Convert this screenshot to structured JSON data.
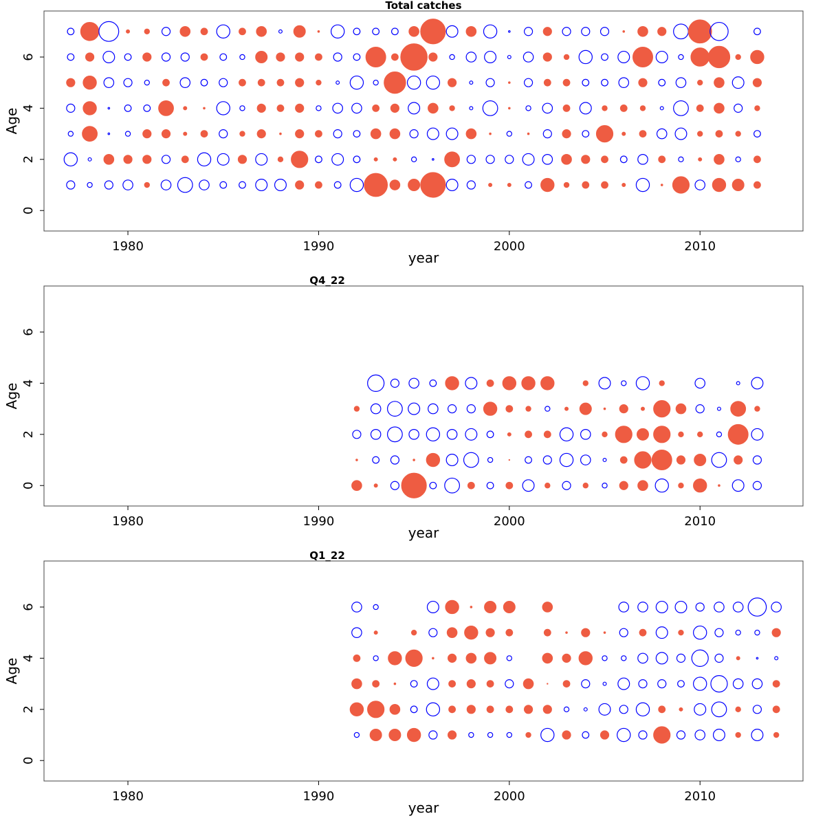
{
  "chart_data": [
    {
      "type": "scatter",
      "subtype": "bubble-residuals",
      "title": "Total catches",
      "xlabel": "year",
      "ylabel": "Age",
      "xlim": [
        1975.6,
        2015.4
      ],
      "ylim": [
        -0.8,
        7.8
      ],
      "xticks": [
        1980,
        1990,
        2000,
        2010
      ],
      "yticks": [
        0,
        2,
        4,
        6
      ],
      "grid": false,
      "legend": "none",
      "encoding": "bubble radius ∝ |residual|; filled red = positive, open blue = negative",
      "years_range": [
        1977,
        2013
      ],
      "ages": [
        1,
        2,
        3,
        4,
        5,
        6,
        7
      ],
      "residual_matrix_by_year": [
        [
          -0.5,
          -0.8,
          -0.3,
          -0.5,
          0.5,
          -0.4,
          -0.4
        ],
        [
          -0.3,
          -0.2,
          0.9,
          0.8,
          0.8,
          0.5,
          1.1
        ],
        [
          -0.5,
          0.6,
          -0.1,
          -0.1,
          -0.6,
          -0.7,
          -1.2
        ],
        [
          -0.6,
          0.5,
          -0.3,
          -0.4,
          -0.5,
          -0.4,
          0.2
        ],
        [
          0.3,
          0.5,
          0.5,
          -0.4,
          -0.3,
          0.5,
          0.3
        ],
        [
          -0.6,
          -0.5,
          0.5,
          0.9,
          0.4,
          -0.5,
          -0.5
        ],
        [
          -0.9,
          0.4,
          0.2,
          0.2,
          -0.6,
          -0.5,
          0.6
        ],
        [
          -0.6,
          -0.8,
          0.4,
          0.1,
          -0.4,
          0.4,
          0.4
        ],
        [
          -0.4,
          -0.7,
          -0.5,
          -0.8,
          -0.5,
          -0.4,
          -0.8
        ],
        [
          -0.4,
          0.5,
          0.3,
          -0.3,
          0.4,
          -0.3,
          0.4
        ],
        [
          -0.7,
          -0.7,
          0.5,
          0.5,
          0.4,
          0.7,
          0.6
        ],
        [
          -0.7,
          0.3,
          0.1,
          0.4,
          0.4,
          0.5,
          -0.2
        ],
        [
          0.5,
          1.0,
          0.5,
          0.5,
          0.5,
          0.5,
          0.7
        ],
        [
          0.4,
          -0.4,
          0.4,
          -0.3,
          0.3,
          0.4,
          0.1
        ],
        [
          -0.4,
          -0.7,
          -0.5,
          -0.6,
          -0.2,
          -0.5,
          -0.8
        ],
        [
          -0.8,
          -0.4,
          -0.4,
          -0.6,
          -0.8,
          -0.4,
          -0.4
        ],
        [
          1.4,
          0.2,
          0.6,
          0.4,
          -0.3,
          1.2,
          -0.4
        ],
        [
          0.6,
          0.2,
          0.6,
          0.5,
          1.3,
          0.4,
          -0.4
        ],
        [
          0.7,
          -0.3,
          -0.5,
          -0.7,
          -0.8,
          1.6,
          0.6
        ],
        [
          1.5,
          -0.1,
          -0.7,
          0.6,
          -0.8,
          0.5,
          1.5
        ],
        [
          -0.7,
          0.9,
          -0.7,
          0.3,
          0.5,
          -0.3,
          -0.7
        ],
        [
          -0.5,
          -0.5,
          0.6,
          -0.2,
          -0.2,
          -0.6,
          0.6
        ],
        [
          0.2,
          -0.5,
          0.1,
          -0.9,
          -0.5,
          -0.7,
          -0.8
        ],
        [
          0.2,
          -0.5,
          -0.3,
          0.1,
          0.1,
          -0.2,
          -0.1
        ],
        [
          -0.4,
          -0.7,
          0.1,
          -0.3,
          -0.5,
          -0.6,
          -0.5
        ],
        [
          0.8,
          -0.6,
          -0.5,
          -0.6,
          0.4,
          0.5,
          0.5
        ],
        [
          0.3,
          0.6,
          0.5,
          0.4,
          0.4,
          0.3,
          -0.5
        ],
        [
          0.4,
          0.5,
          -0.4,
          -0.7,
          -0.4,
          -0.8,
          -0.5
        ],
        [
          0.4,
          0.4,
          1.0,
          0.3,
          -0.4,
          -0.4,
          -0.5
        ],
        [
          0.2,
          -0.4,
          0.2,
          0.4,
          -0.6,
          -0.7,
          0.1
        ],
        [
          -0.8,
          -0.6,
          0.4,
          0.3,
          0.5,
          1.2,
          0.6
        ],
        [
          0.1,
          0.4,
          -0.6,
          -0.2,
          -0.4,
          -0.7,
          0.5
        ],
        [
          1.0,
          -0.3,
          -0.7,
          -0.9,
          -0.6,
          -0.3,
          -0.9
        ],
        [
          -0.6,
          0.2,
          0.3,
          0.4,
          0.3,
          1.1,
          1.4
        ],
        [
          0.8,
          0.6,
          0.4,
          0.6,
          0.6,
          1.3,
          -1.1
        ],
        [
          0.7,
          -0.3,
          0.3,
          -0.5,
          -0.7,
          0.3,
          null
        ],
        [
          0.4,
          0.4,
          -0.4,
          0.3,
          0.5,
          0.8,
          -0.4
        ]
      ]
    },
    {
      "type": "scatter",
      "subtype": "bubble-residuals",
      "title": "Q4_22",
      "xlabel": "year",
      "ylabel": "Age",
      "xlim": [
        1975.6,
        2015.4
      ],
      "ylim": [
        -0.8,
        7.8
      ],
      "xticks": [
        1980,
        1990,
        2000,
        2010
      ],
      "yticks": [
        0,
        2,
        4,
        6
      ],
      "grid": false,
      "legend": "none",
      "years_range": [
        1992,
        2013
      ],
      "ages": [
        0,
        1,
        2,
        3,
        4
      ],
      "residual_matrix_by_year": [
        [
          0.6,
          0.1,
          -0.5,
          0.3,
          null
        ],
        [
          0.2,
          -0.4,
          -0.6,
          -0.6,
          -1.0
        ],
        [
          -0.5,
          -0.5,
          -0.9,
          -0.9,
          -0.5
        ],
        [
          1.5,
          0.1,
          -0.6,
          -0.7,
          -0.6
        ],
        [
          -0.4,
          0.8,
          -0.8,
          -0.6,
          -0.4
        ],
        [
          -0.9,
          -0.7,
          -0.6,
          -0.5,
          0.8
        ],
        [
          0.4,
          -0.9,
          -0.7,
          -0.5,
          -0.7
        ],
        [
          -0.4,
          -0.3,
          -0.4,
          0.8,
          0.4
        ],
        [
          0.4,
          0.05,
          0.2,
          0.4,
          0.8
        ],
        [
          -0.7,
          -0.4,
          0.4,
          0.3,
          0.8
        ],
        [
          0.3,
          -0.5,
          0.4,
          -0.3,
          0.8
        ],
        [
          -0.5,
          -0.8,
          -0.8,
          0.2,
          null
        ],
        [
          0.3,
          -0.6,
          -0.6,
          0.7,
          0.3
        ],
        [
          -0.3,
          -0.2,
          0.3,
          0.1,
          -0.7
        ],
        [
          0.5,
          0.4,
          1.0,
          0.5,
          -0.3
        ],
        [
          0.6,
          1.0,
          0.7,
          0.2,
          -0.8
        ],
        [
          -0.8,
          1.2,
          1.0,
          1.0,
          0.3
        ],
        [
          0.3,
          0.5,
          0.3,
          0.6,
          null
        ],
        [
          0.8,
          0.7,
          0.3,
          -0.5,
          -0.6
        ],
        [
          0.1,
          -0.9,
          -0.3,
          -0.2,
          null
        ],
        [
          -0.7,
          0.5,
          1.2,
          0.9,
          -0.2
        ],
        [
          -0.5,
          -0.5,
          -0.7,
          0.3,
          -0.7
        ]
      ]
    },
    {
      "type": "scatter",
      "subtype": "bubble-residuals",
      "title": "Q1_22",
      "xlabel": "year",
      "ylabel": "Age",
      "xlim": [
        1975.6,
        2015.4
      ],
      "ylim": [
        -0.8,
        7.8
      ],
      "xticks": [
        1980,
        1990,
        2000,
        2010
      ],
      "yticks": [
        0,
        2,
        4,
        6
      ],
      "grid": false,
      "legend": "none",
      "years_range": [
        1992,
        2014
      ],
      "ages": [
        1,
        2,
        3,
        4,
        5,
        6
      ],
      "residual_matrix_by_year": [
        [
          -0.3,
          0.8,
          0.6,
          0.4,
          -0.6,
          -0.6
        ],
        [
          0.7,
          1.0,
          0.4,
          -0.3,
          0.2,
          -0.3
        ],
        [
          0.7,
          0.6,
          0.1,
          0.8,
          null,
          null
        ],
        [
          0.8,
          -0.4,
          -0.4,
          1.0,
          0.3,
          null
        ],
        [
          -0.5,
          -0.8,
          -0.7,
          0.1,
          -0.5,
          -0.7
        ],
        [
          0.5,
          0.4,
          0.4,
          0.5,
          0.6,
          0.8
        ],
        [
          -0.3,
          0.5,
          0.5,
          0.6,
          0.8,
          0.1
        ],
        [
          -0.3,
          0.4,
          0.4,
          0.7,
          0.5,
          0.7
        ],
        [
          -0.3,
          0.4,
          -0.5,
          -0.3,
          0.4,
          0.7
        ],
        [
          0.3,
          0.5,
          0.6,
          null,
          null,
          null
        ],
        [
          -0.8,
          0.5,
          0.05,
          0.6,
          0.4,
          0.6
        ],
        [
          0.5,
          -0.3,
          0.4,
          0.5,
          0.1,
          null
        ],
        [
          -0.4,
          -0.2,
          -0.5,
          0.8,
          0.5,
          null
        ],
        [
          0.5,
          -0.7,
          -0.2,
          -0.3,
          0.1,
          null
        ],
        [
          -0.8,
          -0.5,
          -0.7,
          -0.3,
          -0.5,
          -0.6
        ],
        [
          -0.5,
          -0.8,
          -0.5,
          -0.6,
          0.4,
          -0.6
        ],
        [
          1.0,
          0.4,
          -0.5,
          -0.7,
          -0.7,
          -0.7
        ],
        [
          -0.5,
          0.2,
          -0.4,
          -0.5,
          0.3,
          -0.7
        ],
        [
          -0.6,
          -0.7,
          -0.8,
          -1.0,
          -0.8,
          -0.5
        ],
        [
          -0.7,
          -0.9,
          -1.0,
          -0.5,
          -0.5,
          -0.6
        ],
        [
          0.3,
          0.3,
          -0.6,
          0.2,
          -0.3,
          -0.6
        ],
        [
          -0.7,
          -0.5,
          -0.6,
          -0.1,
          -0.3,
          -1.1
        ],
        [
          0.3,
          0.4,
          0.4,
          -0.2,
          0.5,
          -0.6
        ]
      ]
    }
  ],
  "colors": {
    "positive": "#EE5C42",
    "negative": "#0000FF",
    "frame": "#444444"
  }
}
